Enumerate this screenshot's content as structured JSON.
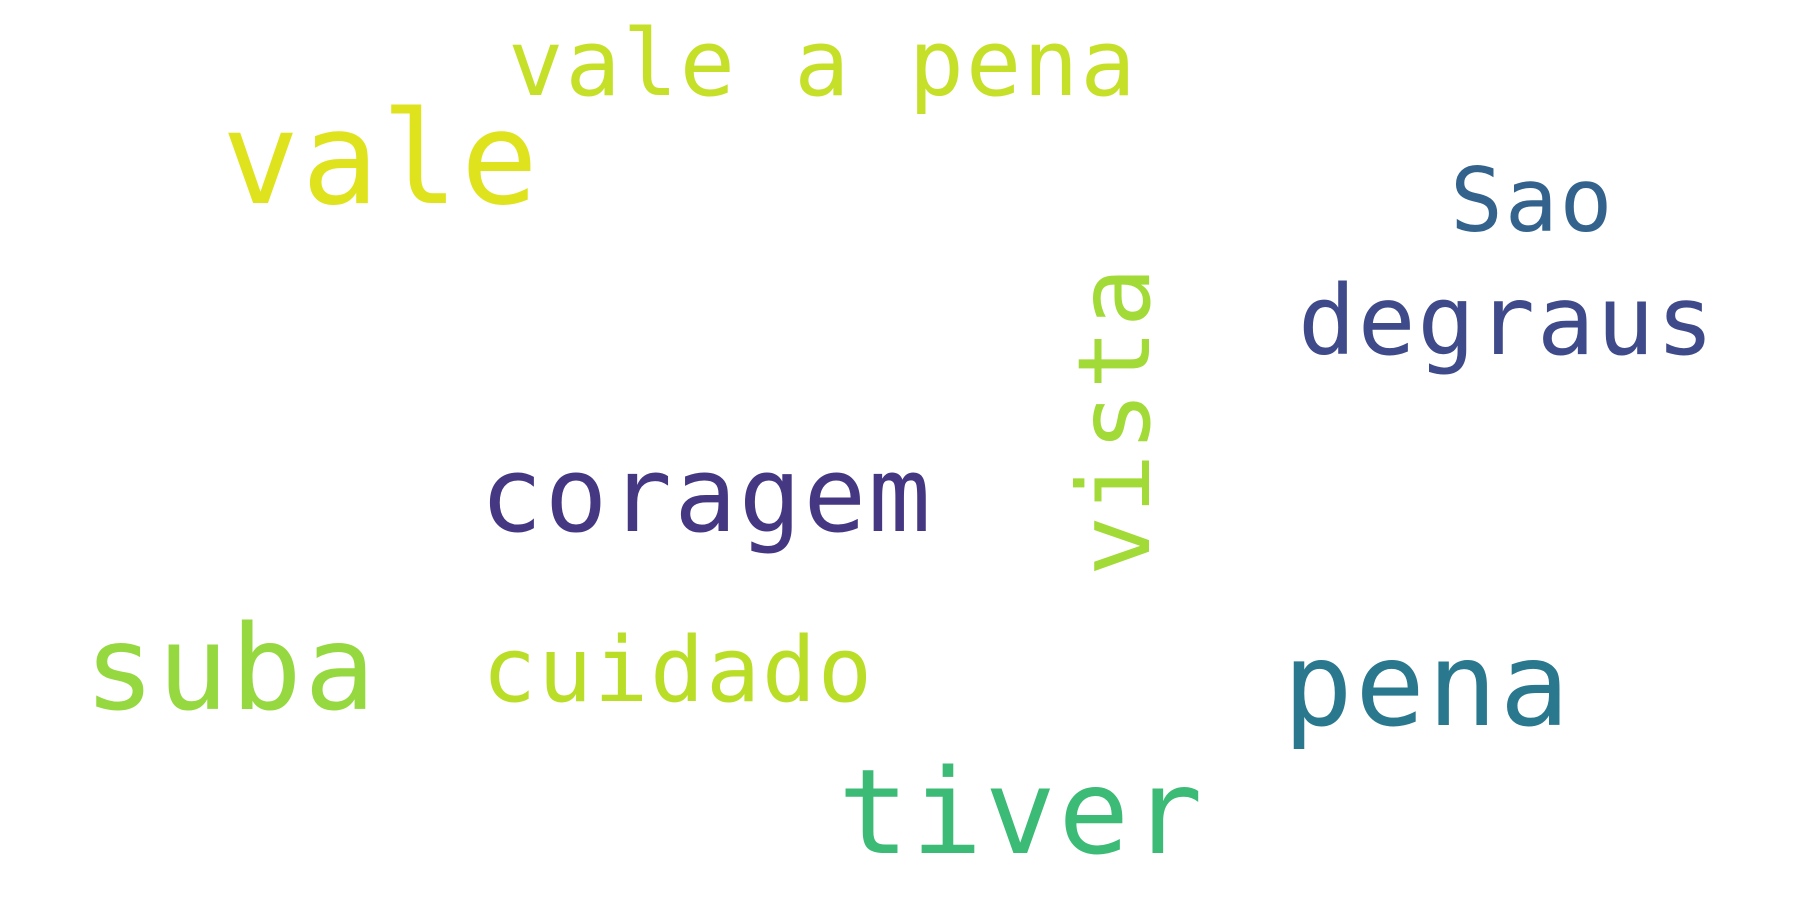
{
  "background": "#ffffff",
  "words": [
    {
      "key": "vale_a_pena",
      "text": "vale a pena",
      "color": "#c6e02a",
      "orientation": "horizontal"
    },
    {
      "key": "vale",
      "text": "vale",
      "color": "#dfe31d",
      "orientation": "horizontal"
    },
    {
      "key": "sao",
      "text": "Sao",
      "color": "#33638d",
      "orientation": "horizontal"
    },
    {
      "key": "degraus",
      "text": "degraus",
      "color": "#3e4a89",
      "orientation": "horizontal"
    },
    {
      "key": "coragem",
      "text": "coragem",
      "color": "#453781",
      "orientation": "horizontal"
    },
    {
      "key": "vista",
      "text": "vista",
      "color": "#a2da37",
      "orientation": "vertical"
    },
    {
      "key": "suba",
      "text": "suba",
      "color": "#95d840",
      "orientation": "horizontal"
    },
    {
      "key": "cuidado",
      "text": "cuidado",
      "color": "#bade28",
      "orientation": "horizontal"
    },
    {
      "key": "pena",
      "text": "pena",
      "color": "#2a788e",
      "orientation": "horizontal"
    },
    {
      "key": "tiver",
      "text": "tiver",
      "color": "#3bbb75",
      "orientation": "horizontal"
    }
  ]
}
